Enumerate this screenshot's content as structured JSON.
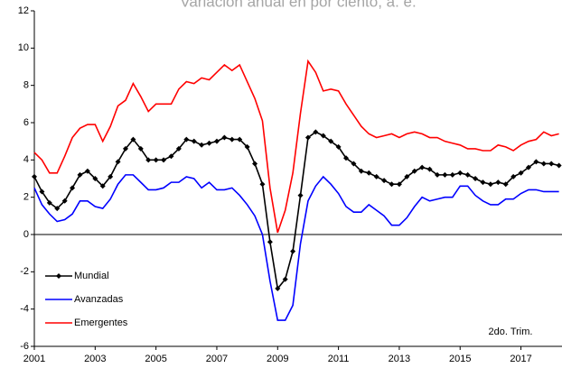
{
  "chart_data": {
    "type": "line",
    "subtitle": "Variación anual en por ciento, a. e.",
    "annotation": "2do. Trim.",
    "x": [
      2001,
      2001.25,
      2001.5,
      2001.75,
      2002,
      2002.25,
      2002.5,
      2002.75,
      2003,
      2003.25,
      2003.5,
      2003.75,
      2004,
      2004.25,
      2004.5,
      2004.75,
      2005,
      2005.25,
      2005.5,
      2005.75,
      2006,
      2006.25,
      2006.5,
      2006.75,
      2007,
      2007.25,
      2007.5,
      2007.75,
      2008,
      2008.25,
      2008.5,
      2008.75,
      2009,
      2009.25,
      2009.5,
      2009.75,
      2010,
      2010.25,
      2010.5,
      2010.75,
      2011,
      2011.25,
      2011.5,
      2011.75,
      2012,
      2012.25,
      2012.5,
      2012.75,
      2013,
      2013.25,
      2013.5,
      2013.75,
      2014,
      2014.25,
      2014.5,
      2014.75,
      2015,
      2015.25,
      2015.5,
      2015.75,
      2016,
      2016.25,
      2016.5,
      2016.75,
      2017,
      2017.25,
      2017.5,
      2017.75,
      2018,
      2018.25
    ],
    "series": [
      {
        "name": "Mundial",
        "color": "#000000",
        "marker": "diamond",
        "values": [
          3.1,
          2.3,
          1.7,
          1.4,
          1.8,
          2.5,
          3.2,
          3.4,
          3.0,
          2.6,
          3.1,
          3.9,
          4.6,
          5.1,
          4.6,
          4.0,
          4.0,
          4.0,
          4.2,
          4.6,
          5.1,
          5.0,
          4.8,
          4.9,
          5.0,
          5.2,
          5.1,
          5.1,
          4.7,
          3.8,
          2.7,
          -0.4,
          -2.9,
          -2.4,
          -0.9,
          2.1,
          5.2,
          5.5,
          5.3,
          5.0,
          4.7,
          4.1,
          3.8,
          3.4,
          3.3,
          3.1,
          2.9,
          2.7,
          2.7,
          3.1,
          3.4,
          3.6,
          3.5,
          3.2,
          3.2,
          3.2,
          3.3,
          3.2,
          3.0,
          2.8,
          2.7,
          2.8,
          2.7,
          3.1,
          3.3,
          3.6,
          3.9,
          3.8,
          3.8,
          3.7
        ]
      },
      {
        "name": "Avanzadas",
        "color": "#0000ff",
        "values": [
          2.5,
          1.6,
          1.1,
          0.7,
          0.8,
          1.1,
          1.8,
          1.8,
          1.5,
          1.4,
          1.9,
          2.7,
          3.2,
          3.2,
          2.8,
          2.4,
          2.4,
          2.5,
          2.8,
          2.8,
          3.1,
          3.0,
          2.5,
          2.8,
          2.4,
          2.4,
          2.5,
          2.1,
          1.6,
          1.0,
          0.0,
          -2.5,
          -4.6,
          -4.6,
          -3.8,
          -0.5,
          1.8,
          2.6,
          3.1,
          2.7,
          2.2,
          1.5,
          1.2,
          1.2,
          1.6,
          1.3,
          1.0,
          0.5,
          0.5,
          0.9,
          1.5,
          2.0,
          1.8,
          1.9,
          2.0,
          2.0,
          2.6,
          2.6,
          2.1,
          1.8,
          1.6,
          1.6,
          1.9,
          1.9,
          2.2,
          2.4,
          2.4,
          2.3,
          2.3,
          2.3
        ]
      },
      {
        "name": "Emergentes",
        "color": "#ff0000",
        "values": [
          4.4,
          4.0,
          3.3,
          3.3,
          4.2,
          5.2,
          5.7,
          5.9,
          5.9,
          5.0,
          5.8,
          6.9,
          7.2,
          8.1,
          7.4,
          6.6,
          7.0,
          7.0,
          7.0,
          7.8,
          8.2,
          8.1,
          8.4,
          8.3,
          8.7,
          9.1,
          8.8,
          9.1,
          8.2,
          7.3,
          6.1,
          2.5,
          0.1,
          1.3,
          3.3,
          6.5,
          9.3,
          8.7,
          7.7,
          7.8,
          7.7,
          7.0,
          6.4,
          5.8,
          5.4,
          5.2,
          5.3,
          5.4,
          5.2,
          5.4,
          5.5,
          5.4,
          5.2,
          5.2,
          5.0,
          4.9,
          4.8,
          4.6,
          4.6,
          4.5,
          4.5,
          4.8,
          4.7,
          4.5,
          4.8,
          5.0,
          5.1,
          5.5,
          5.3,
          5.4
        ]
      }
    ],
    "xlim": [
      2001,
      2018.35
    ],
    "xticks": [
      2001,
      2003,
      2005,
      2007,
      2009,
      2011,
      2013,
      2015,
      2017
    ],
    "ylim": [
      -6,
      12
    ],
    "yticks": [
      -6,
      -4,
      -2,
      0,
      2,
      4,
      6,
      8,
      10,
      12
    ],
    "legend": "lower-left"
  }
}
